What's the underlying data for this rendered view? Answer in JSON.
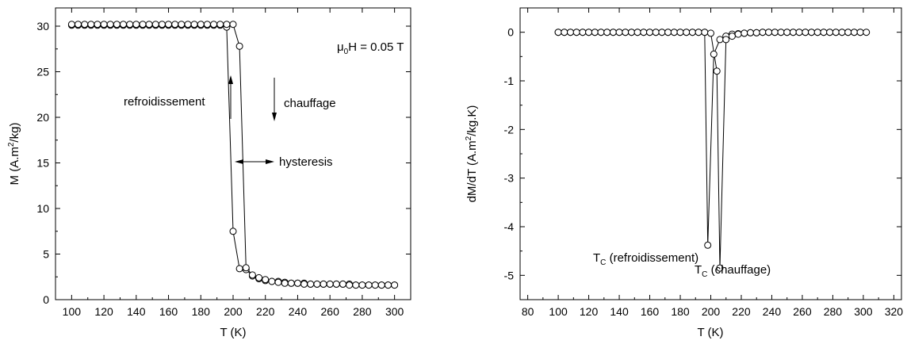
{
  "chart_data": [
    {
      "type": "scatter",
      "xlabel": "T (K)",
      "ylabel": "M (A.m²/kg)",
      "ylabel_parts": {
        "pre": "M (A.m",
        "sup": "2",
        "post": "/kg)"
      },
      "xlim": [
        90,
        310
      ],
      "ylim": [
        0,
        32
      ],
      "x_ticks": [
        100,
        120,
        140,
        160,
        180,
        200,
        220,
        240,
        260,
        280,
        300
      ],
      "y_ticks": [
        0,
        5,
        10,
        15,
        20,
        25,
        30
      ],
      "field_label": {
        "pre": "μ",
        "sub": "0",
        "post": "H = 0.05 T"
      },
      "annotations": {
        "cooling": "refroidissement",
        "heating": "chauffage",
        "hysteresis": "hysteresis"
      },
      "series": [
        {
          "x": [
            300,
            296,
            292,
            288,
            284,
            280,
            276,
            272,
            268,
            264,
            260,
            256,
            252,
            248,
            244,
            240,
            236,
            232,
            228,
            224,
            220,
            216,
            212,
            208,
            204,
            200,
            196,
            192,
            188,
            184,
            180,
            176,
            172,
            168,
            164,
            160,
            156,
            152,
            148,
            144,
            140,
            136,
            132,
            128,
            124,
            120,
            116,
            112,
            108,
            104,
            100
          ],
          "values": [
            1.6,
            1.6,
            1.6,
            1.6,
            1.6,
            1.6,
            1.6,
            1.7,
            1.7,
            1.7,
            1.7,
            1.7,
            1.7,
            1.7,
            1.8,
            1.8,
            1.8,
            1.9,
            2.0,
            2.0,
            2.1,
            2.3,
            2.6,
            3.3,
            3.4,
            7.5,
            29.9,
            30.1,
            30.1,
            30.1,
            30.1,
            30.1,
            30.1,
            30.1,
            30.1,
            30.1,
            30.1,
            30.1,
            30.1,
            30.1,
            30.1,
            30.1,
            30.1,
            30.1,
            30.1,
            30.1,
            30.1,
            30.1,
            30.1,
            30.1,
            30.1
          ]
        },
        {
          "x": [
            100,
            104,
            108,
            112,
            116,
            120,
            124,
            128,
            132,
            136,
            140,
            144,
            148,
            152,
            156,
            160,
            164,
            168,
            172,
            176,
            180,
            184,
            188,
            192,
            196,
            200,
            204,
            208,
            212,
            216,
            220,
            224,
            228,
            232,
            236,
            240,
            244,
            248,
            252,
            256,
            260,
            264,
            268,
            272,
            276,
            280,
            284,
            288,
            292,
            296,
            300
          ],
          "values": [
            30.2,
            30.2,
            30.2,
            30.2,
            30.2,
            30.2,
            30.2,
            30.2,
            30.2,
            30.2,
            30.2,
            30.2,
            30.2,
            30.2,
            30.2,
            30.2,
            30.2,
            30.2,
            30.2,
            30.2,
            30.2,
            30.2,
            30.2,
            30.2,
            30.2,
            30.2,
            27.8,
            3.5,
            2.7,
            2.4,
            2.2,
            2.0,
            1.9,
            1.8,
            1.8,
            1.8,
            1.7,
            1.7,
            1.7,
            1.7,
            1.7,
            1.7,
            1.7,
            1.6,
            1.6,
            1.6,
            1.6,
            1.6,
            1.6,
            1.6,
            1.6
          ]
        }
      ]
    },
    {
      "type": "scatter",
      "xlabel": "T (K)",
      "ylabel": "dM/dT (A.m²/kg.K)",
      "ylabel_parts": {
        "pre": "dM/dT (A.m",
        "sup": "2",
        "post": "/kg.K)"
      },
      "xlim": [
        75,
        325
      ],
      "ylim": [
        -5.5,
        0.5
      ],
      "x_ticks": [
        80,
        100,
        120,
        140,
        160,
        180,
        200,
        220,
        240,
        260,
        280,
        300,
        320
      ],
      "y_ticks": [
        -5,
        -4,
        -3,
        -2,
        -1,
        0
      ],
      "annotations": {
        "tc_cool": {
          "pre": "T",
          "sub": "C",
          "post": " (refroidissement)"
        },
        "tc_heat": {
          "pre": "T",
          "sub": "C",
          "post": " (chauffage)"
        }
      },
      "series": [
        {
          "x": [
            100,
            104,
            108,
            112,
            116,
            120,
            124,
            128,
            132,
            136,
            140,
            144,
            148,
            152,
            156,
            160,
            164,
            168,
            172,
            176,
            180,
            184,
            188,
            192,
            196,
            198,
            202,
            206,
            210,
            214,
            218,
            222,
            226,
            230,
            234,
            238,
            242,
            246,
            250,
            254,
            258,
            262,
            266,
            270,
            274,
            278,
            282,
            286,
            290,
            294,
            298
          ],
          "values": [
            0,
            0,
            0,
            0,
            0,
            0,
            0,
            0,
            0,
            0,
            0,
            0,
            0,
            0,
            0,
            0,
            0,
            0,
            0,
            0,
            0,
            0,
            0,
            0,
            0,
            -4.38,
            -0.45,
            -0.15,
            -0.08,
            -0.04,
            -0.03,
            -0.02,
            -0.01,
            -0.01,
            0,
            0,
            0,
            0,
            0,
            0,
            0,
            0,
            0,
            0,
            0,
            0,
            0,
            0,
            0,
            0,
            0
          ]
        },
        {
          "x": [
            100,
            104,
            108,
            112,
            116,
            120,
            124,
            128,
            132,
            136,
            140,
            144,
            148,
            152,
            156,
            160,
            164,
            168,
            172,
            176,
            180,
            184,
            188,
            192,
            196,
            200,
            204,
            206,
            210,
            214,
            218,
            222,
            226,
            230,
            234,
            238,
            242,
            246,
            250,
            254,
            258,
            262,
            266,
            270,
            274,
            278,
            282,
            286,
            290,
            294,
            298,
            302
          ],
          "values": [
            0,
            0,
            0,
            0,
            0,
            0,
            0,
            0,
            0,
            0,
            0,
            0,
            0,
            0,
            0,
            0,
            0,
            0,
            0,
            0,
            0,
            0,
            0,
            0,
            0,
            -0.02,
            -0.8,
            -4.85,
            -0.15,
            -0.08,
            -0.04,
            -0.02,
            -0.01,
            -0.01,
            0,
            0,
            0,
            0,
            0,
            0,
            0,
            0,
            0,
            0,
            0,
            0,
            0,
            0,
            0,
            0,
            0,
            0
          ]
        }
      ]
    }
  ]
}
